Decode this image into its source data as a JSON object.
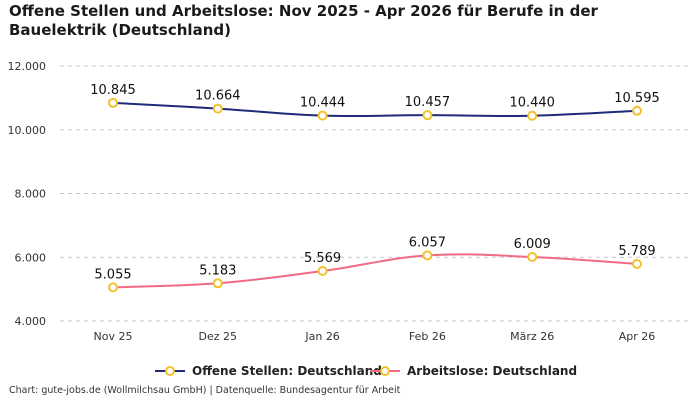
{
  "chart_data": {
    "type": "line",
    "title": "Offene Stellen und Arbeitslose: Nov 2025 - Apr 2026 für Berufe in der Bauelektrik (Deutschland)",
    "categories": [
      "Nov 25",
      "Dez 25",
      "Jan 26",
      "Feb 26",
      "März 26",
      "Apr 26"
    ],
    "series": [
      {
        "name": "Offene Stellen: Deutschland",
        "values": [
          10845,
          10664,
          10444,
          10457,
          10440,
          10595
        ],
        "labels": [
          "10.845",
          "10.664",
          "10.444",
          "10.457",
          "10.440",
          "10.595"
        ],
        "color": "#1f2a7a"
      },
      {
        "name": "Arbeitslose: Deutschland",
        "values": [
          5055,
          5183,
          5569,
          6057,
          6009,
          5789
        ],
        "labels": [
          "5.055",
          "5.183",
          "5.569",
          "6.057",
          "6.009",
          "5.789"
        ],
        "color": "#f06b84"
      }
    ],
    "yticks": [
      4000,
      6000,
      8000,
      10000,
      12000
    ],
    "ytick_labels": [
      "4.000",
      "6.000",
      "8.000",
      "10.000",
      "12.000"
    ],
    "ylim": [
      4000,
      12000
    ],
    "xlabel": "",
    "ylabel": "",
    "grid": true,
    "legend_position": "bottom",
    "marker_color": "#f2c12e"
  },
  "footer": "Chart: gute-jobs.de (Wollmilchsau GmbH) | Datenquelle: Bundesagentur für Arbeit"
}
